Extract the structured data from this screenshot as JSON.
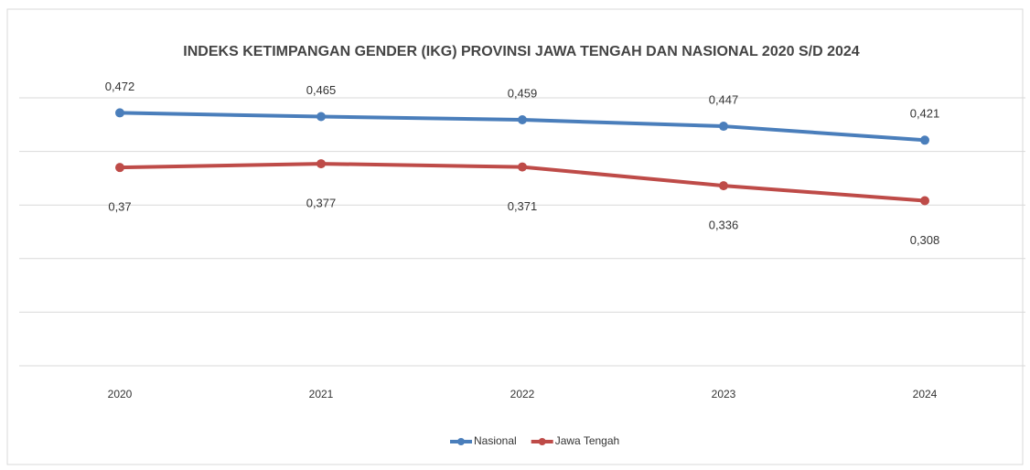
{
  "chart_data": {
    "type": "line",
    "title": "INDEKS KETIMPANGAN GENDER (IKG) PROVINSI JAWA TENGAH DAN NASIONAL 2020 S/D 2024",
    "categories": [
      "2020",
      "2021",
      "2022",
      "2023",
      "2024"
    ],
    "series": [
      {
        "name": "Nasional",
        "color": "#4a7ebb",
        "values": [
          0.472,
          0.465,
          0.459,
          0.447,
          0.421
        ],
        "value_labels": [
          "0,472",
          "0,465",
          "0,459",
          "0,447",
          "0,421"
        ]
      },
      {
        "name": "Jawa Tengah",
        "color": "#be4b48",
        "values": [
          0.37,
          0.377,
          0.371,
          0.336,
          0.308
        ],
        "value_labels": [
          "0,37",
          "0,377",
          "0,371",
          "0,336",
          "0,308"
        ]
      }
    ],
    "ylim": [
      0,
      0.5
    ],
    "yticks": [
      0,
      0.1,
      0.2,
      0.3,
      0.4,
      0.5
    ],
    "grid": true,
    "legend": "bottom"
  }
}
